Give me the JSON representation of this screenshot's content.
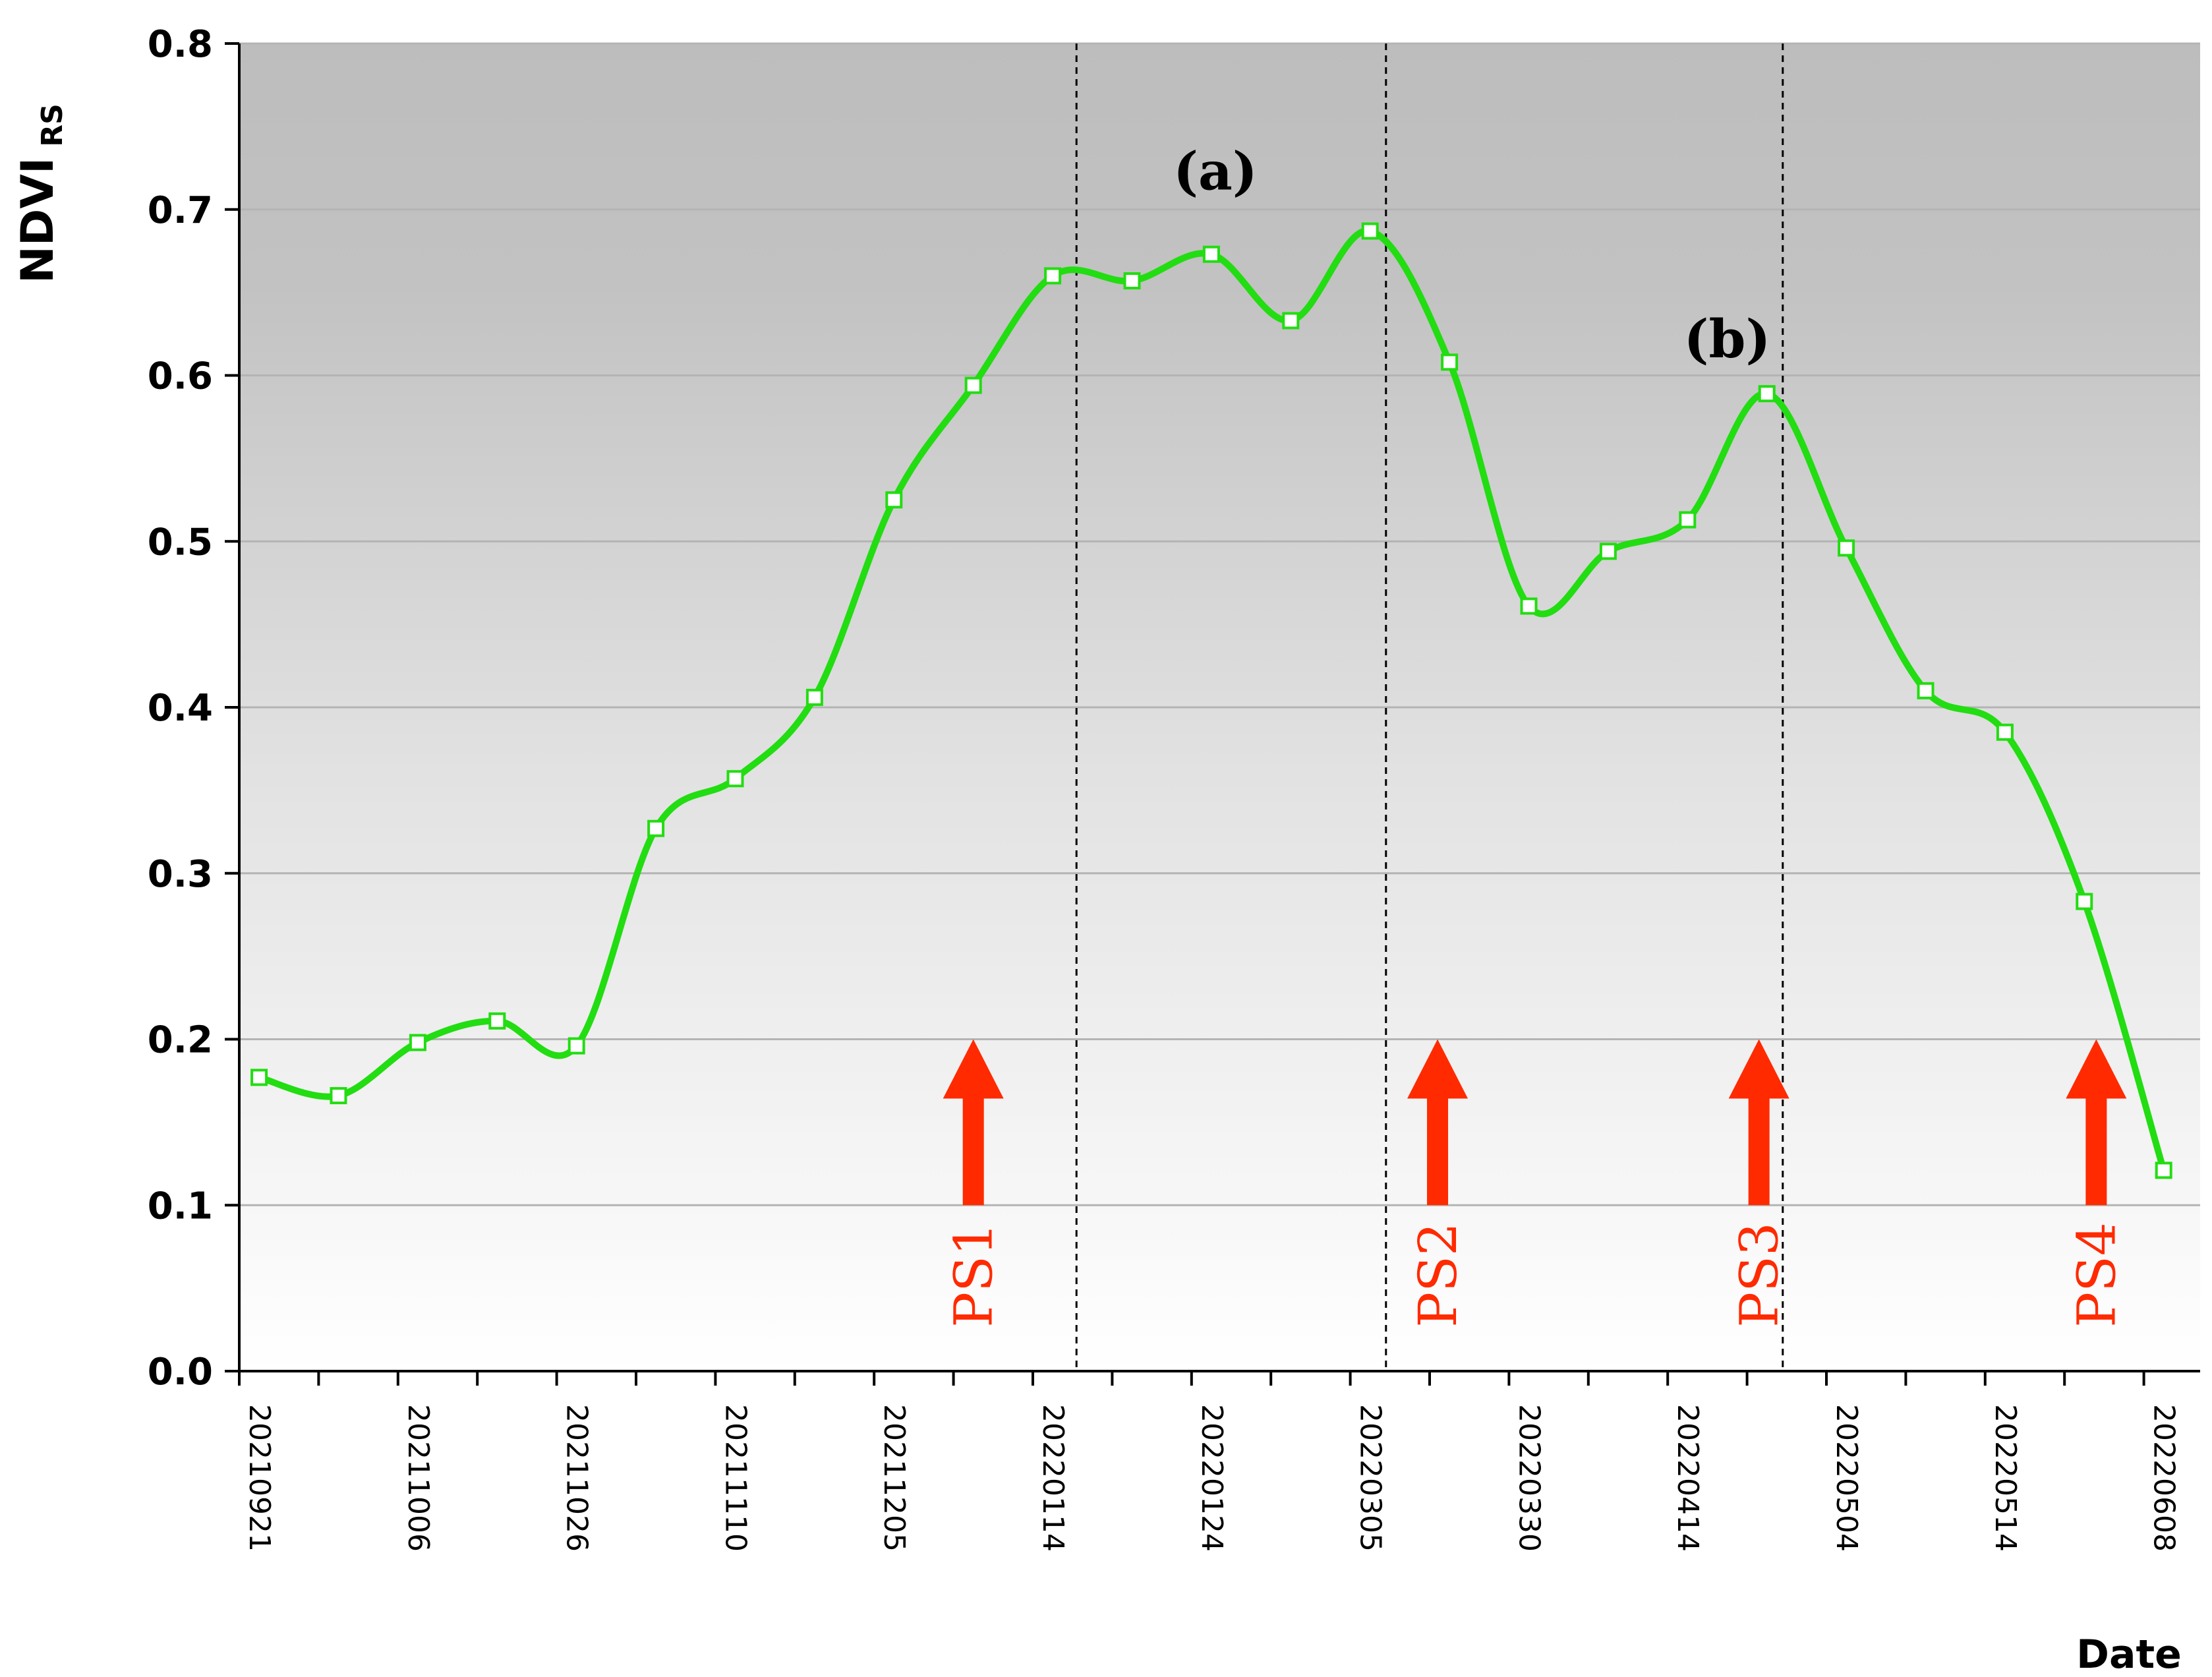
{
  "chart_data": {
    "type": "line",
    "ylabel": "NDVI",
    "ylabel_sub": "RS",
    "xlabel": "Date",
    "ylim": [
      0.0,
      0.8
    ],
    "yticks": [
      "0.0",
      "0.1",
      "0.2",
      "0.3",
      "0.4",
      "0.5",
      "0.6",
      "0.7",
      "0.8"
    ],
    "grid": "horizontal",
    "x_tick_labels": [
      "20210921",
      "20211006",
      "20211026",
      "20211110",
      "20211205",
      "20220114",
      "20220124",
      "20220305",
      "20220330",
      "20220414",
      "20220504",
      "20220514",
      "20220608"
    ],
    "series": [
      {
        "color": "#22dd11",
        "marker": "open-square",
        "x": [
          0.25,
          1.25,
          2.25,
          3.25,
          4.25,
          5.25,
          6.25,
          7.25,
          8.25,
          9.25,
          10.25,
          11.25,
          12.25,
          13.25,
          14.25,
          15.25,
          16.25,
          17.25,
          18.25,
          19.25,
          20.25,
          21.25,
          22.25,
          23.25,
          24.25
        ],
        "values": [
          0.177,
          0.166,
          0.198,
          0.211,
          0.196,
          0.327,
          0.357,
          0.406,
          0.525,
          0.594,
          0.66,
          0.657,
          0.673,
          0.633,
          0.687,
          0.608,
          0.461,
          0.494,
          0.513,
          0.589,
          0.496,
          0.41,
          0.385,
          0.283,
          0.121
        ]
      }
    ],
    "vlines_x": [
      10.55,
      14.45,
      19.45
    ],
    "annotations": [
      {
        "text": "(a)",
        "x": 12.3,
        "y": 0.712
      },
      {
        "text": "(b)",
        "x": 18.75,
        "y": 0.611
      }
    ],
    "growth_stages": [
      {
        "label": "PS1",
        "x": 9.25
      },
      {
        "label": "PS2",
        "x": 15.1
      },
      {
        "label": "PS3",
        "x": 19.15
      },
      {
        "label": "PS4",
        "x": 23.4
      }
    ],
    "stage_arrow_y": [
      0.1,
      0.2
    ]
  },
  "colors": {
    "line": "#22dd11",
    "arrow": "#ff2a00",
    "bg_top": "#bdbdbd",
    "bg_bottom": "#ffffff"
  }
}
